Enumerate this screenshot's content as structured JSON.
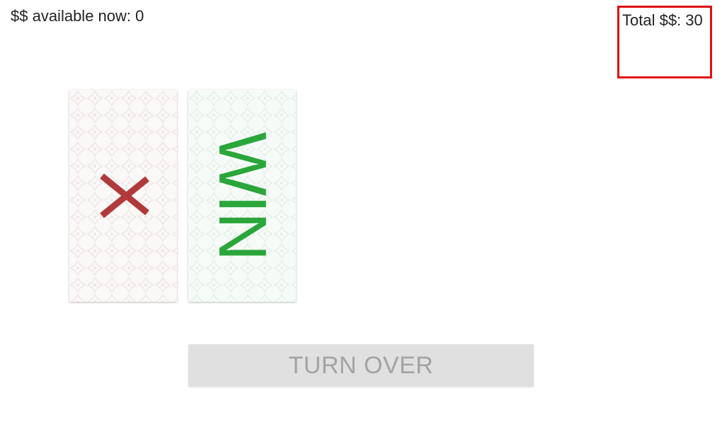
{
  "header": {
    "available_label": "$$ available now: 0",
    "total_label": "Total $$: 30"
  },
  "cards": [
    {
      "symbol": "lose-x-icon",
      "color": "#b03a3a",
      "background": "#fbf8f8"
    },
    {
      "text": "WIN",
      "color": "#2aa63a",
      "background": "#f7fbf8"
    }
  ],
  "actions": {
    "turn_over_label": "TURN OVER",
    "turn_over_disabled": true
  },
  "colors": {
    "total_box_border": "#e01010",
    "button_bg": "#e0e0e0",
    "button_text": "#a3a3a3"
  }
}
